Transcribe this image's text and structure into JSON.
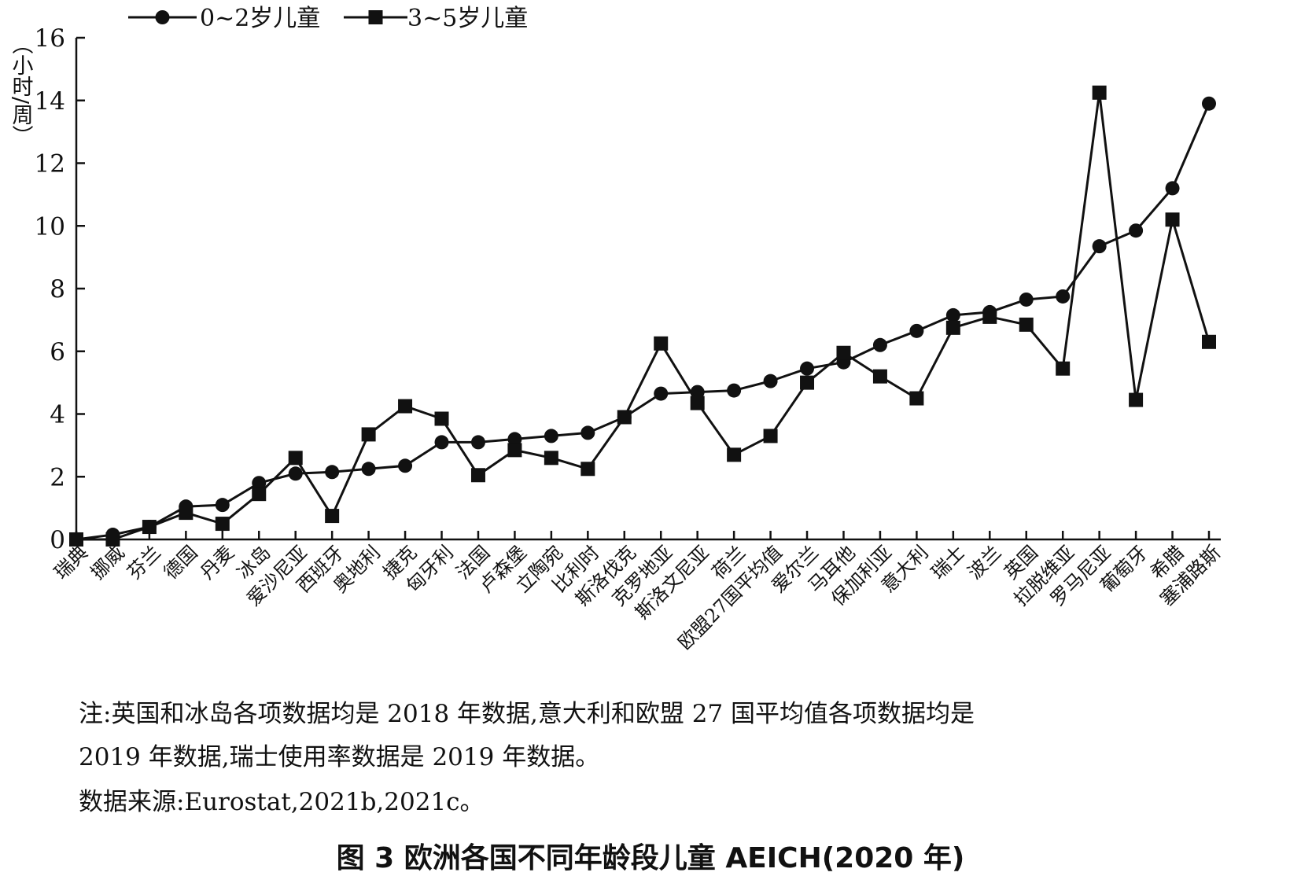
{
  "chart_data": {
    "type": "line",
    "ylabel": "（小时/周）",
    "ylim": [
      0,
      16
    ],
    "yticks": [
      0,
      2,
      4,
      6,
      8,
      10,
      12,
      14,
      16
    ],
    "grid": false,
    "legend_position": "top-left",
    "categories": [
      "瑞典",
      "挪威",
      "芬兰",
      "德国",
      "丹麦",
      "冰岛",
      "爱沙尼亚",
      "西班牙",
      "奥地利",
      "捷克",
      "匈牙利",
      "法国",
      "卢森堡",
      "立陶宛",
      "比利时",
      "斯洛伐克",
      "克罗地亚",
      "斯洛文尼亚",
      "荷兰",
      "欧盟27国平均值",
      "爱尔兰",
      "马耳他",
      "保加利亚",
      "意大利",
      "瑞士",
      "波兰",
      "英国",
      "拉脱维亚",
      "罗马尼亚",
      "葡萄牙",
      "希腊",
      "塞浦路斯"
    ],
    "series": [
      {
        "name": "0~2岁儿童",
        "marker": "circle",
        "values": [
          0.0,
          0.15,
          0.4,
          1.05,
          1.1,
          1.8,
          2.1,
          2.15,
          2.25,
          2.35,
          3.1,
          3.1,
          3.2,
          3.3,
          3.4,
          3.9,
          4.65,
          4.7,
          4.75,
          5.05,
          5.45,
          5.65,
          6.2,
          6.65,
          7.15,
          7.25,
          7.65,
          7.75,
          9.35,
          9.85,
          11.2,
          13.9
        ]
      },
      {
        "name": "3~5岁儿童",
        "marker": "square",
        "values": [
          0.0,
          0.0,
          0.4,
          0.85,
          0.5,
          1.45,
          2.6,
          0.75,
          3.35,
          4.25,
          3.85,
          2.05,
          2.85,
          2.6,
          2.25,
          3.9,
          6.25,
          4.35,
          2.7,
          3.3,
          5.0,
          5.95,
          5.2,
          4.5,
          6.75,
          7.1,
          6.85,
          5.45,
          14.25,
          4.45,
          10.2,
          6.3
        ]
      }
    ]
  },
  "notes": {
    "line1": "注:英国和冰岛各项数据均是 2018 年数据,意大利和欧盟 27 国平均值各项数据均是",
    "line2": "2019 年数据,瑞士使用率数据是 2019 年数据。",
    "source": "数据来源:Eurostat,2021b,2021c。"
  },
  "caption": {
    "figure_label": "图 3",
    "title": "欧洲各国不同年龄段儿童 AEICH(2020 年)"
  }
}
